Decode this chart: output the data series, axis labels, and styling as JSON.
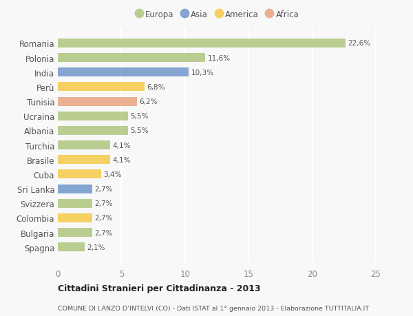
{
  "countries": [
    "Romania",
    "Polonia",
    "India",
    "Perù",
    "Tunisia",
    "Ucraina",
    "Albania",
    "Turchia",
    "Brasile",
    "Cuba",
    "Sri Lanka",
    "Svizzera",
    "Colombia",
    "Bulgaria",
    "Spagna"
  ],
  "values": [
    22.6,
    11.6,
    10.3,
    6.8,
    6.2,
    5.5,
    5.5,
    4.1,
    4.1,
    3.4,
    2.7,
    2.7,
    2.7,
    2.7,
    2.1
  ],
  "labels": [
    "22,6%",
    "11,6%",
    "10,3%",
    "6,8%",
    "6,2%",
    "5,5%",
    "5,5%",
    "4,1%",
    "4,1%",
    "3,4%",
    "2,7%",
    "2,7%",
    "2,7%",
    "2,7%",
    "2,1%"
  ],
  "continents": [
    "Europa",
    "Europa",
    "Asia",
    "America",
    "Africa",
    "Europa",
    "Europa",
    "Europa",
    "America",
    "America",
    "Asia",
    "Europa",
    "America",
    "Europa",
    "Europa"
  ],
  "colors": {
    "Europa": "#adc47a",
    "Asia": "#6b93c9",
    "America": "#f5c842",
    "Africa": "#e8a07a"
  },
  "title": "Cittadini Stranieri per Cittadinanza - 2013",
  "subtitle": "COMUNE DI LANZO D’INTELVI (CO) - Dati ISTAT al 1° gennaio 2013 - Elaborazione TUTTITALIA.IT",
  "xlim": [
    0,
    25
  ],
  "xticks": [
    0,
    5,
    10,
    15,
    20,
    25
  ],
  "background_color": "#f8f8f8",
  "bar_alpha": 0.82,
  "legend_order": [
    "Europa",
    "Asia",
    "America",
    "Africa"
  ]
}
